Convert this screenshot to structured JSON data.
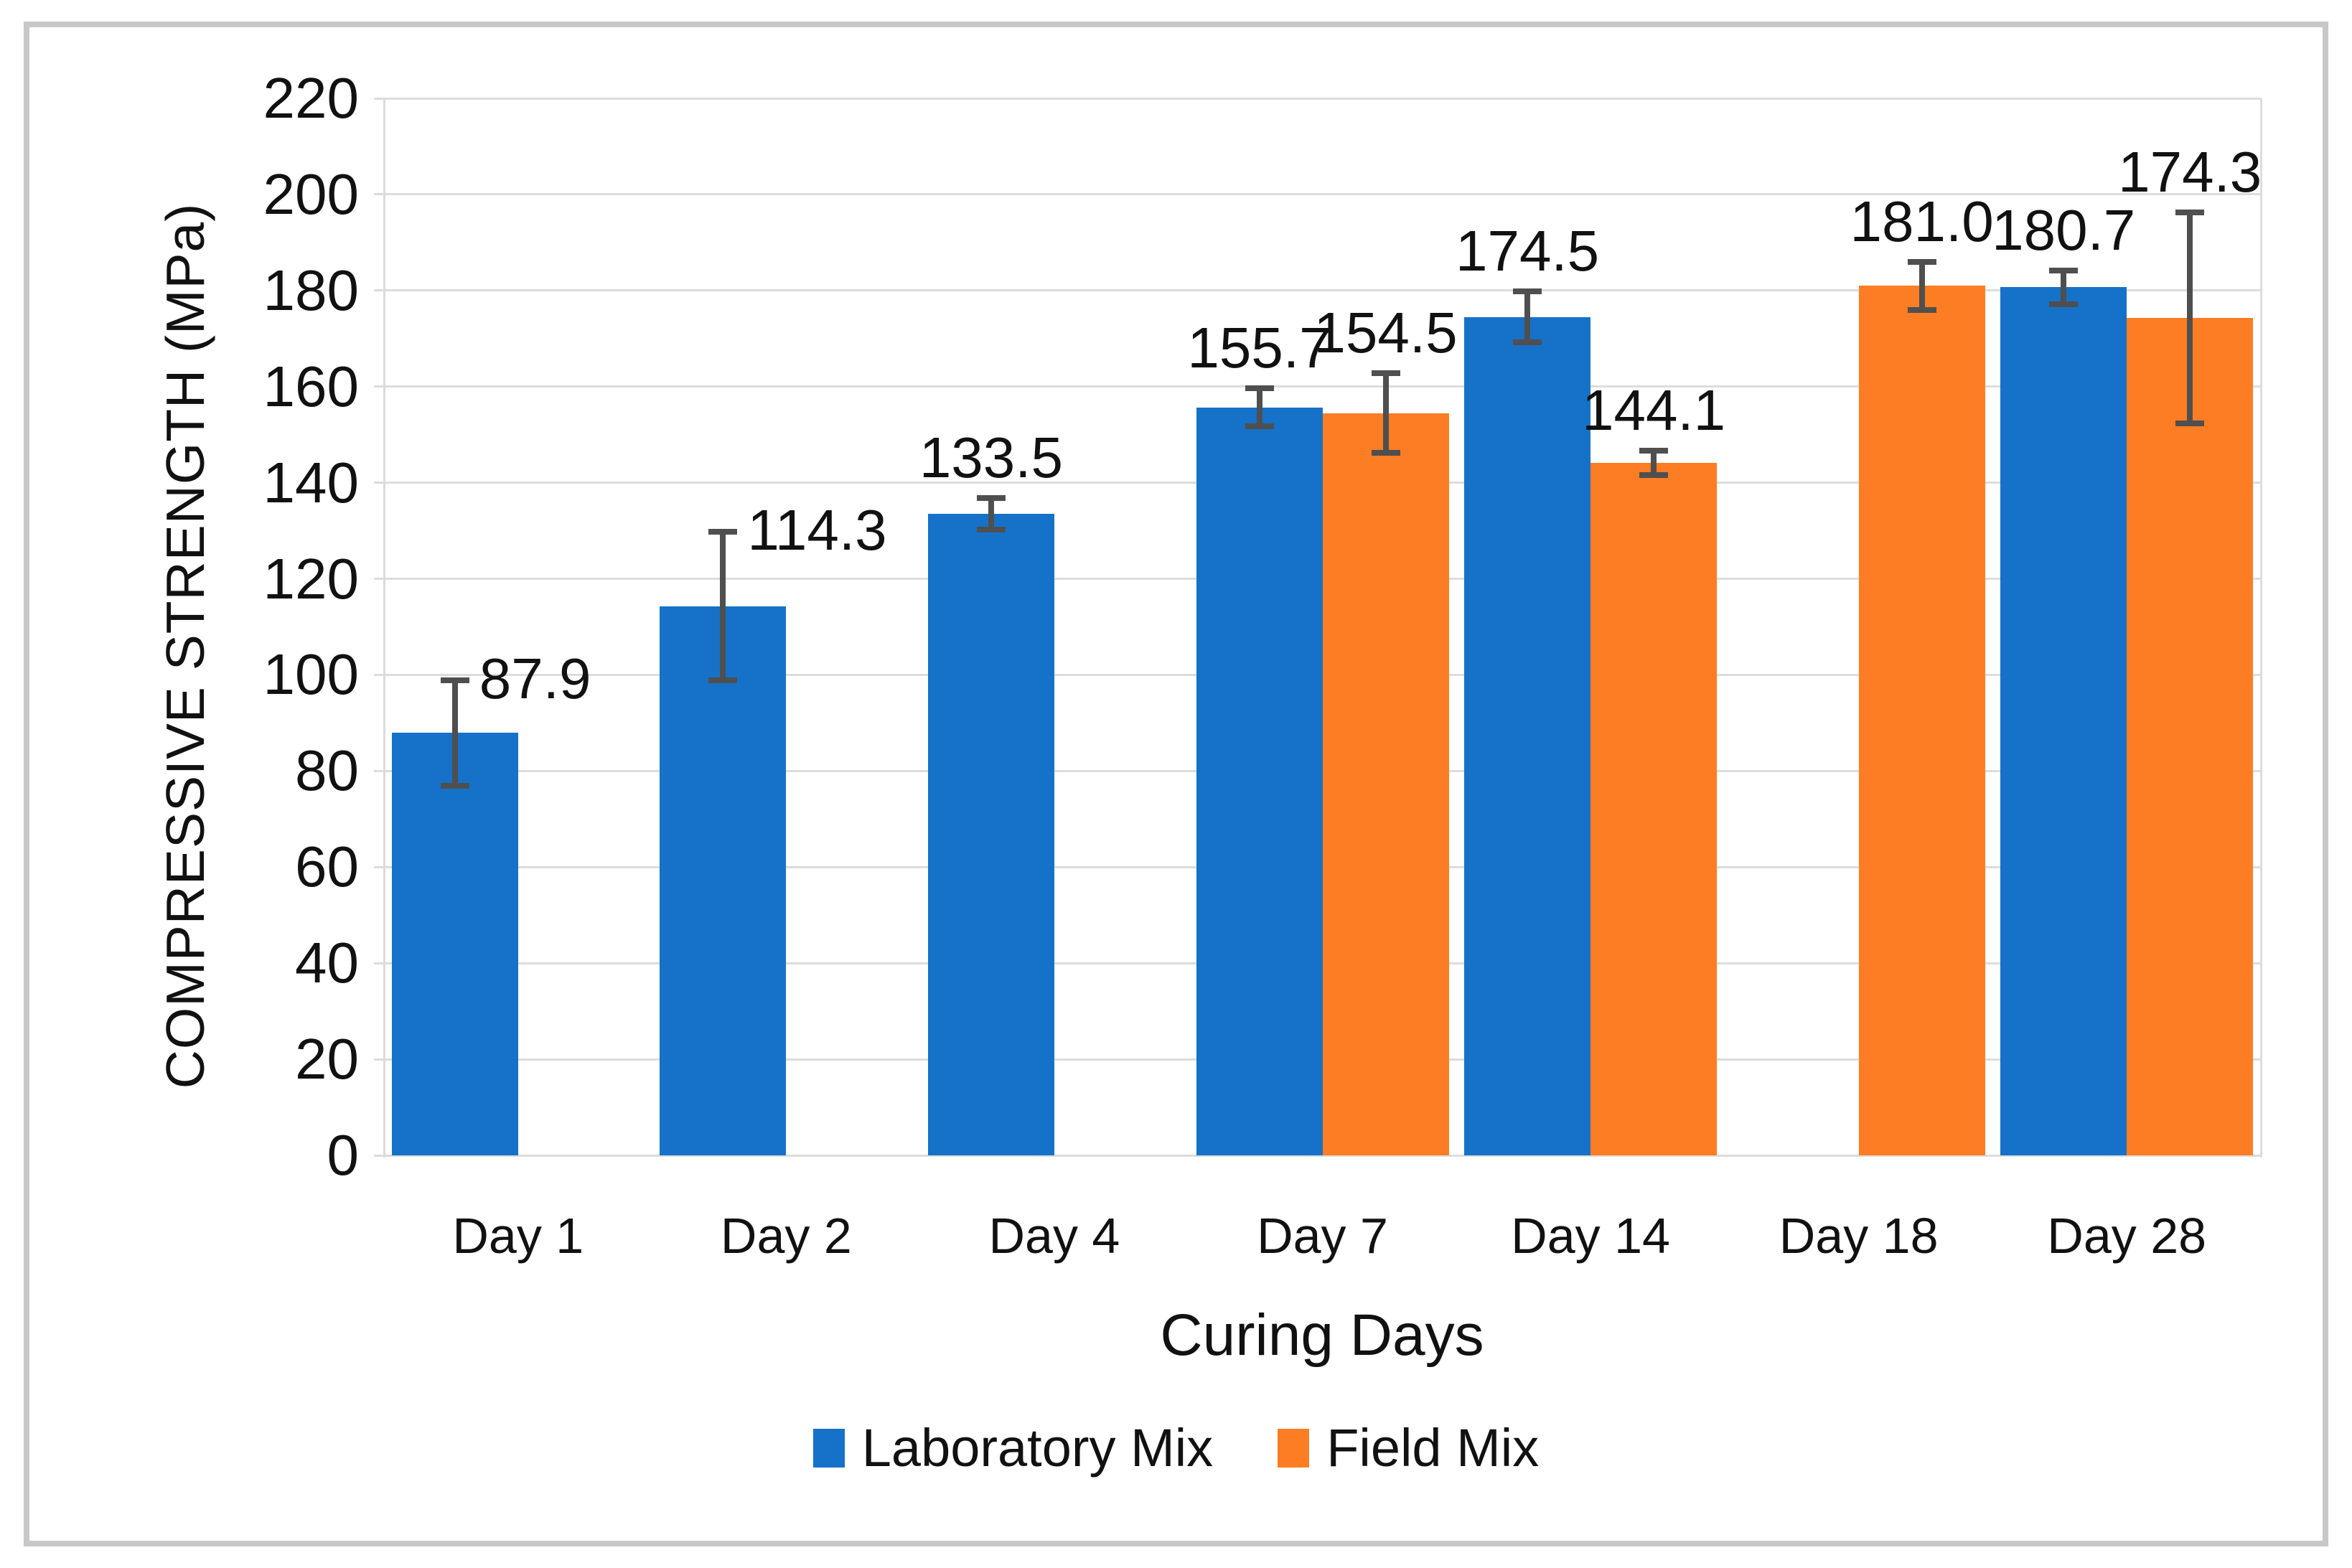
{
  "frame": {
    "border_color": "#c8c8c8",
    "background": "#ffffff"
  },
  "chart_data": {
    "type": "bar",
    "title": "",
    "xlabel": "Curing Days",
    "ylabel": "COMPRESSIVE STRENGTH (MPa)",
    "ylim": [
      0,
      220
    ],
    "ytick_step": 20,
    "grid": true,
    "legend_position": "bottom-center",
    "categories": [
      "Day 1",
      "Day 2",
      "Day 4",
      "Day 7",
      "Day 14",
      "Day 18",
      "Day 28"
    ],
    "series": [
      {
        "name": "Laboratory Mix",
        "color": "#1572c8",
        "values": [
          87.9,
          114.3,
          133.5,
          155.7,
          174.5,
          null,
          180.7
        ],
        "errors": [
          11.0,
          15.5,
          3.3,
          4.0,
          5.3,
          null,
          3.5
        ],
        "label_align": [
          "right",
          "right",
          "center",
          "center",
          "center",
          null,
          "center"
        ],
        "data_labels": [
          "87.9",
          "114.3",
          "133.5",
          "155.7",
          "174.5",
          null,
          "180.7"
        ]
      },
      {
        "name": "Field Mix",
        "color": "#fc7d23",
        "values": [
          null,
          null,
          null,
          154.5,
          144.1,
          181.0,
          174.3
        ],
        "errors": [
          null,
          null,
          null,
          8.3,
          2.5,
          5.0,
          22.0
        ],
        "label_align": [
          null,
          null,
          null,
          "center",
          "center",
          "center",
          "center"
        ],
        "data_labels": [
          null,
          null,
          null,
          "154.5",
          "144.1",
          "181.0",
          "174.3"
        ]
      }
    ],
    "styles": {
      "gridline_color": "#dcdcdc",
      "error_bar_color": "#4f4f4f",
      "text_color": "#111111"
    }
  }
}
